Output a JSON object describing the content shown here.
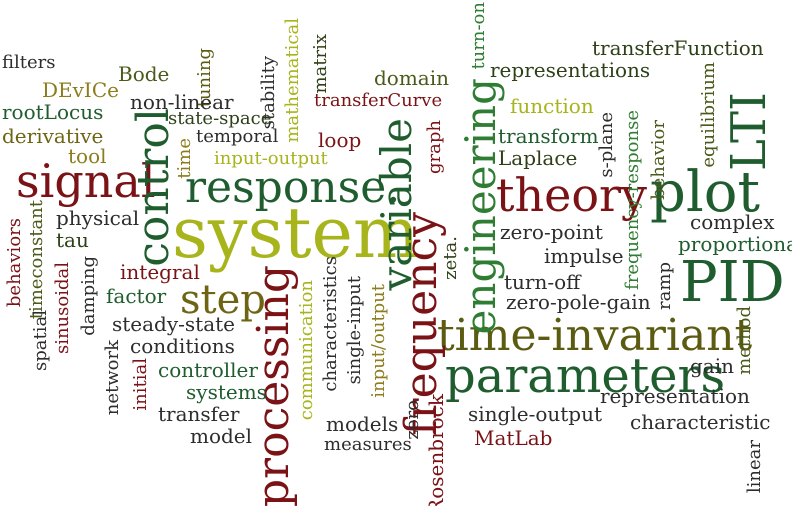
{
  "words": [
    {
      "text": "system",
      "color": "#a7b41c",
      "weight": "normal"
    },
    {
      "text": "processing",
      "color": "#7a1216",
      "weight": "normal"
    },
    {
      "text": "time-invariant",
      "color": "#5b5b12",
      "weight": "normal"
    },
    {
      "text": "parameters",
      "color": "#1f5d2f",
      "weight": "normal"
    },
    {
      "text": "response.",
      "color": "#1f5d2f",
      "weight": "normal"
    },
    {
      "text": "theory",
      "color": "#7a1216",
      "weight": "normal"
    },
    {
      "text": "plot",
      "color": "#1f5d2f",
      "weight": "normal"
    },
    {
      "text": "PID",
      "color": "#1f5d2f",
      "weight": "normal"
    },
    {
      "text": "signal",
      "color": "#7a1216",
      "weight": "normal"
    },
    {
      "text": "control",
      "color": "#1f5d2f",
      "weight": "normal"
    },
    {
      "text": "variable",
      "color": "#1f5d2f",
      "weight": "normal"
    },
    {
      "text": "frequency",
      "color": "#7a1216",
      "weight": "normal"
    },
    {
      "text": "engineering",
      "color": "#2e7d32",
      "weight": "normal"
    },
    {
      "text": "step",
      "color": "#6d6514",
      "weight": "normal"
    },
    {
      "text": "LTI",
      "color": "#1f5d2f",
      "weight": "normal"
    },
    {
      "text": "transferFunction",
      "color": "#2d4017",
      "weight": "normal"
    },
    {
      "text": "representations",
      "color": "#2d4017",
      "weight": "normal"
    },
    {
      "text": "domain",
      "color": "#4a5a1b",
      "weight": "normal"
    },
    {
      "text": "turn-on",
      "color": "#2e7d32",
      "weight": "normal"
    },
    {
      "text": "equilibrium",
      "color": "#4a5a1b",
      "weight": "normal"
    },
    {
      "text": "function",
      "color": "#a7b41c",
      "weight": "normal"
    },
    {
      "text": "transferCurve",
      "color": "#7a1216",
      "weight": "normal"
    },
    {
      "text": "filters",
      "color": "#2d2d2d",
      "weight": "normal"
    },
    {
      "text": "DEvICe",
      "color": "#8c7c1c",
      "weight": "normal"
    },
    {
      "text": "Bode",
      "color": "#4a5a1b",
      "weight": "normal"
    },
    {
      "text": "tuning",
      "color": "#5b5b12",
      "weight": "normal"
    },
    {
      "text": "stability",
      "color": "#2d2d2d",
      "weight": "normal"
    },
    {
      "text": "mathematical",
      "color": "#a7b41c",
      "weight": "normal"
    },
    {
      "text": "matrix",
      "color": "#2d4017",
      "weight": "normal"
    },
    {
      "text": "rootLocus",
      "color": "#1f5d2f",
      "weight": "normal"
    },
    {
      "text": "non-linear",
      "color": "#2d2d2d",
      "weight": "normal"
    },
    {
      "text": "state-space",
      "color": "#2d4017",
      "weight": "normal"
    },
    {
      "text": "derivative",
      "color": "#6d6514",
      "weight": "normal"
    },
    {
      "text": "temporal",
      "color": "#2d2d2d",
      "weight": "normal"
    },
    {
      "text": "input-output",
      "color": "#a7b41c",
      "weight": "normal"
    },
    {
      "text": "loop",
      "color": "#7a1216",
      "weight": "normal"
    },
    {
      "text": "graph",
      "color": "#7a1216",
      "weight": "normal"
    },
    {
      "text": "transform",
      "color": "#1f5d2f",
      "weight": "normal"
    },
    {
      "text": "Laplace",
      "color": "#2d4017",
      "weight": "normal"
    },
    {
      "text": "s-plane",
      "color": "#2d2d2d",
      "weight": "normal"
    },
    {
      "text": "frequency-response",
      "color": "#2e7d32",
      "weight": "normal"
    },
    {
      "text": "behavior",
      "color": "#4a5a1b",
      "weight": "normal"
    },
    {
      "text": "tool",
      "color": "#8c7c1c",
      "weight": "normal"
    },
    {
      "text": "time",
      "color": "#8c7c1c",
      "weight": "normal"
    },
    {
      "text": "complex",
      "color": "#2d2d2d",
      "weight": "normal"
    },
    {
      "text": "proportional",
      "color": "#1f5d2f",
      "weight": "normal"
    },
    {
      "text": "physical",
      "color": "#2d2d2d",
      "weight": "normal"
    },
    {
      "text": "tau",
      "color": "#2d4017",
      "weight": "normal"
    },
    {
      "text": "behaviors",
      "color": "#7a1216",
      "weight": "normal"
    },
    {
      "text": "timeconstant",
      "color": "#4a5a1b",
      "weight": "normal"
    },
    {
      "text": "spatial",
      "color": "#2d2d2d",
      "weight": "normal"
    },
    {
      "text": "sinusoidal",
      "color": "#7a1216",
      "weight": "normal"
    },
    {
      "text": "damping",
      "color": "#2d2d2d",
      "weight": "normal"
    },
    {
      "text": "integral",
      "color": "#7a1216",
      "weight": "normal"
    },
    {
      "text": "factor",
      "color": "#1f5d2f",
      "weight": "normal"
    },
    {
      "text": "zero-point",
      "color": "#2d2d2d",
      "weight": "normal"
    },
    {
      "text": "impulse",
      "color": "#2d2d2d",
      "weight": "normal"
    },
    {
      "text": "zeta.",
      "color": "#2d4017",
      "weight": "normal"
    },
    {
      "text": "ramp",
      "color": "#2d2d2d",
      "weight": "normal"
    },
    {
      "text": "turn-off",
      "color": "#2d2d2d",
      "weight": "normal"
    },
    {
      "text": "zero-pole-gain",
      "color": "#2d2d2d",
      "weight": "normal"
    },
    {
      "text": "steady-state",
      "color": "#2d2d2d",
      "weight": "normal"
    },
    {
      "text": "conditions",
      "color": "#2d2d2d",
      "weight": "normal"
    },
    {
      "text": "network",
      "color": "#2d2d2d",
      "weight": "normal"
    },
    {
      "text": "initial",
      "color": "#7a1216",
      "weight": "normal"
    },
    {
      "text": "controller",
      "color": "#1f5d2f",
      "weight": "normal"
    },
    {
      "text": "systems",
      "color": "#1f5d2f",
      "weight": "normal"
    },
    {
      "text": "transfer",
      "color": "#2d2d2d",
      "weight": "normal"
    },
    {
      "text": "model",
      "color": "#2d2d2d",
      "weight": "normal"
    },
    {
      "text": "communication",
      "color": "#a7b41c",
      "weight": "normal"
    },
    {
      "text": "characteristics",
      "color": "#2d2d2d",
      "weight": "normal"
    },
    {
      "text": "single-input",
      "color": "#2d2d2d",
      "weight": "normal"
    },
    {
      "text": "input/output",
      "color": "#8c7c1c",
      "weight": "normal"
    },
    {
      "text": "models",
      "color": "#2d2d2d",
      "weight": "normal"
    },
    {
      "text": "measures",
      "color": "#2d2d2d",
      "weight": "normal"
    },
    {
      "text": "zero",
      "color": "#2d2d2d",
      "weight": "normal"
    },
    {
      "text": "Rosenbrock",
      "color": "#7a1216",
      "weight": "normal"
    },
    {
      "text": "single-output",
      "color": "#2d2d2d",
      "weight": "normal"
    },
    {
      "text": "MatLab",
      "color": "#7a1216",
      "weight": "normal"
    },
    {
      "text": "gain",
      "color": "#2d2d2d",
      "weight": "normal"
    },
    {
      "text": "method",
      "color": "#4a5a1b",
      "weight": "normal"
    },
    {
      "text": "representation",
      "color": "#2d2d2d",
      "weight": "normal"
    },
    {
      "text": "characteristic",
      "color": "#2d2d2d",
      "weight": "normal"
    },
    {
      "text": "linear",
      "color": "#2d2d2d",
      "weight": "normal"
    }
  ]
}
